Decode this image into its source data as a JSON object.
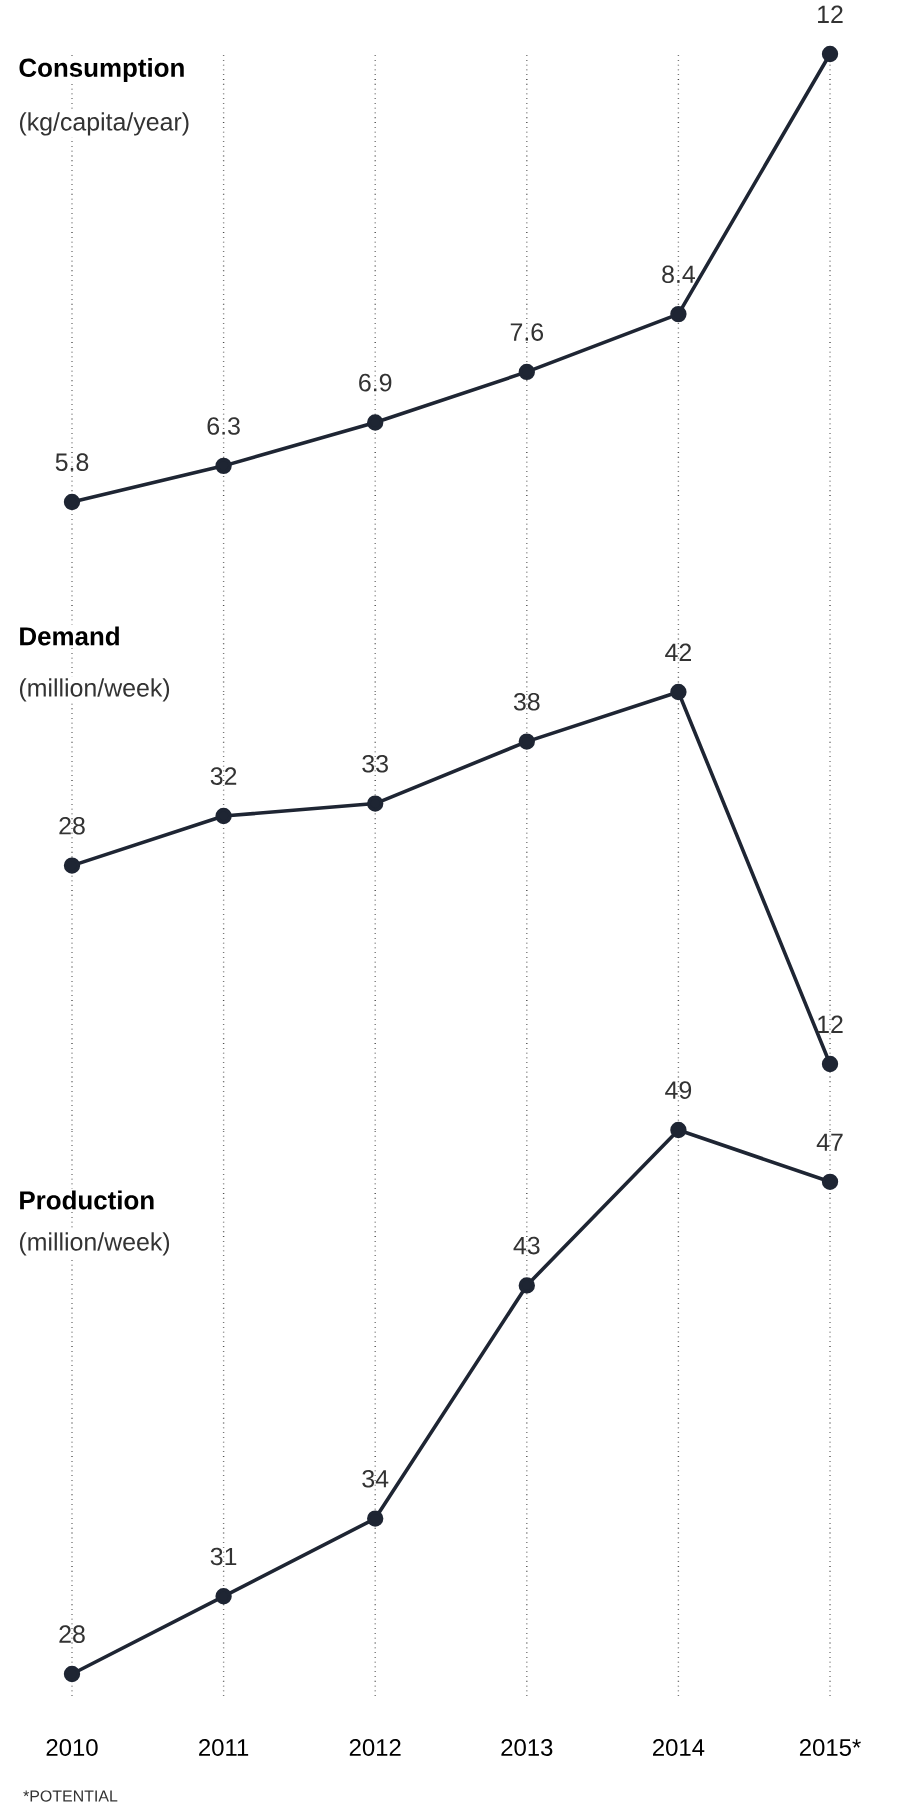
{
  "chart_data": [
    {
      "type": "line",
      "title": "Consumption",
      "subtitle": "(kg/capita/year)",
      "categories": [
        null,
        null,
        null,
        null,
        null,
        null
      ],
      "series": [
        {
          "color": "#1e2533",
          "values": [
            5.8,
            6.3,
            6.9,
            7.6,
            8.4,
            12
          ]
        }
      ],
      "data_labels": true,
      "marker": "circle",
      "line_style": "solid",
      "grid": "x",
      "tick_labels": false
    },
    {
      "type": "line",
      "title": "Demand",
      "subtitle": "(million/week)",
      "categories": [
        null,
        null,
        null,
        null,
        null,
        null
      ],
      "series": [
        {
          "color": "#1e2533",
          "values": [
            28,
            32,
            33,
            38,
            42,
            12
          ]
        }
      ],
      "data_labels": true,
      "marker": "circle",
      "line_style": "solid",
      "grid": "x",
      "tick_labels": false
    },
    {
      "type": "line",
      "title": "Production",
      "subtitle": "(million/week)",
      "categories": [
        "2010",
        "2011",
        "2012",
        "2013",
        "2014",
        "2015*"
      ],
      "series": [
        {
          "color": "#1e2533",
          "values": [
            28,
            31,
            34,
            43,
            49,
            47
          ]
        }
      ],
      "data_labels": true,
      "marker": "circle",
      "line_style": "solid",
      "grid": "x",
      "tick_labels": "x",
      "annotations": [
        "*POTENTIAL"
      ]
    }
  ]
}
